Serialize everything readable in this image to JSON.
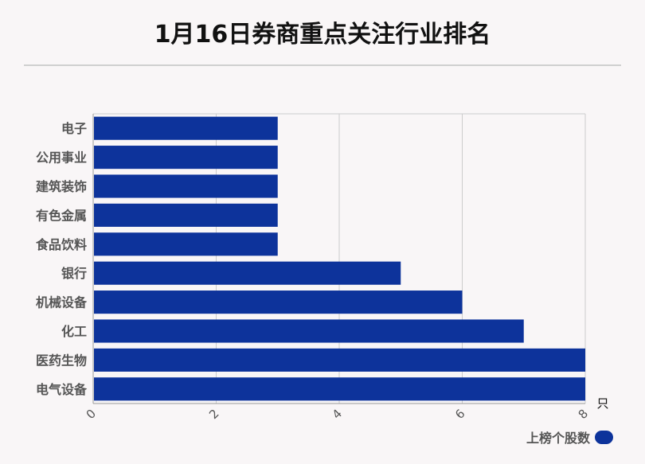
{
  "header": {
    "title": "1月16日券商重点关注行业排名"
  },
  "chart_data": {
    "type": "bar",
    "orientation": "horizontal",
    "categories": [
      "电子",
      "公用事业",
      "建筑装饰",
      "有色金属",
      "食品饮料",
      "银行",
      "机械设备",
      "化工",
      "医药生物",
      "电气设备"
    ],
    "series": [
      {
        "name": "上榜个股数",
        "values": [
          3,
          3,
          3,
          3,
          3,
          5,
          6,
          7,
          8,
          8
        ]
      }
    ],
    "xlim": [
      0,
      8
    ],
    "xticks": [
      0,
      2,
      4,
      6,
      8
    ],
    "xunit": "只",
    "grid": true,
    "legend": "bottom-right"
  },
  "colors": {
    "bar": "#0d339b",
    "grid": "#cccccc",
    "axis": "#999999",
    "label": "#555555"
  }
}
